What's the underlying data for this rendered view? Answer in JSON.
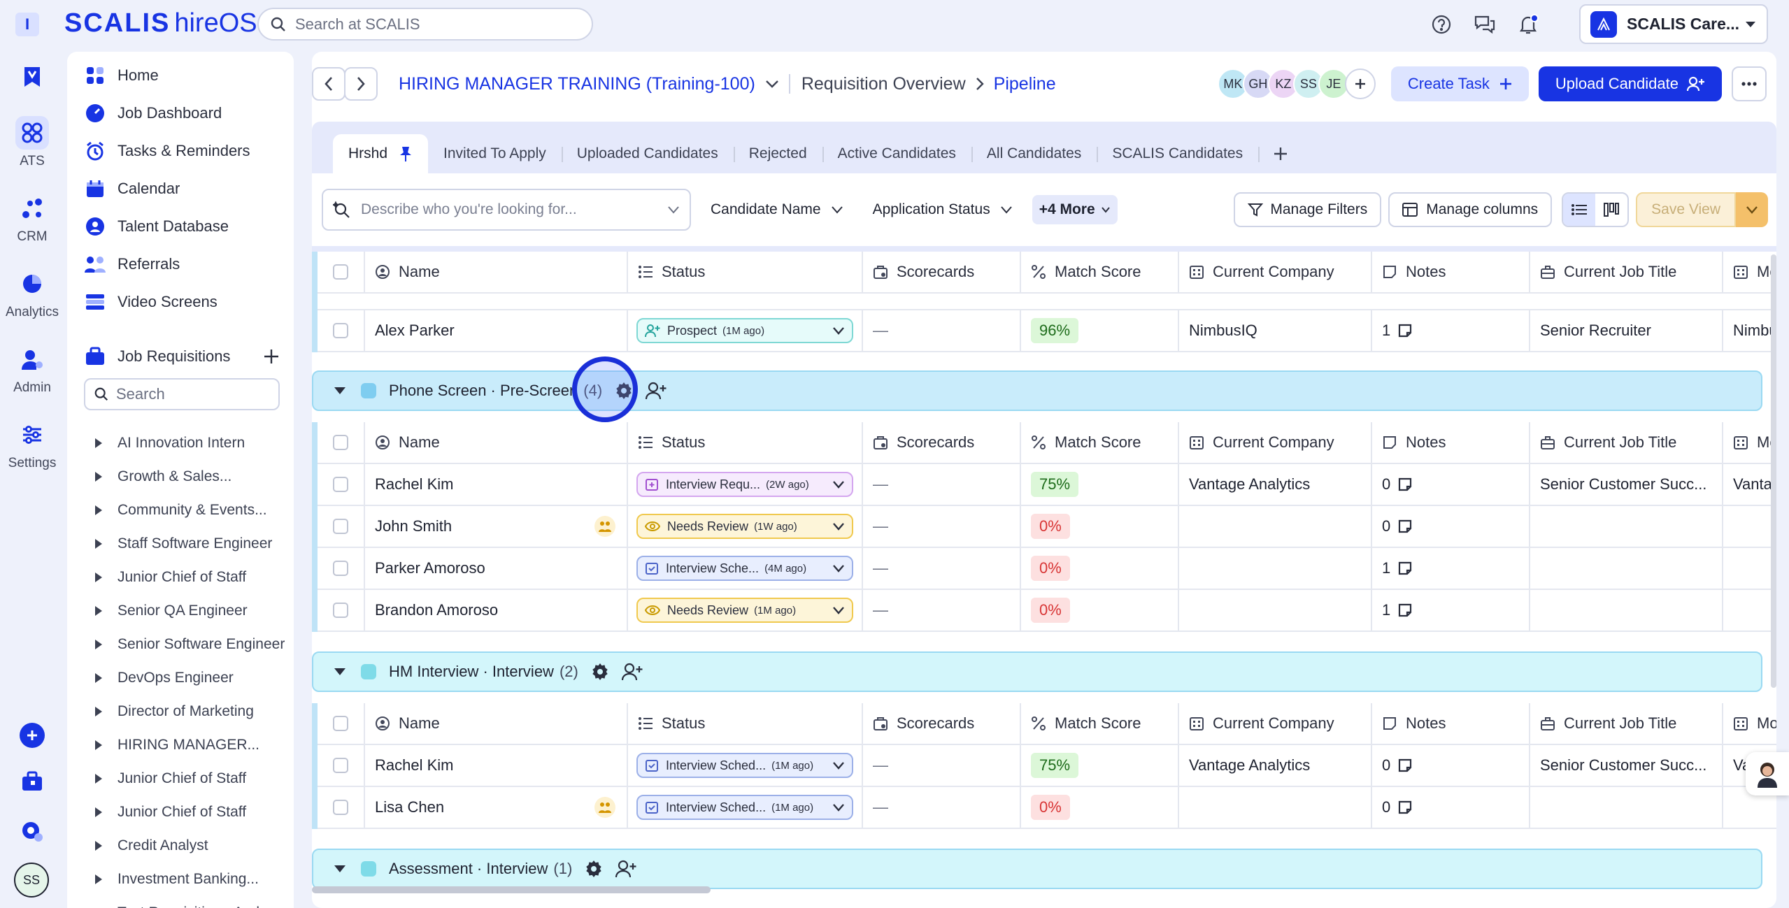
{
  "brand": {
    "name": "SCALIS",
    "product": "hireOS",
    "menu_icon": "I"
  },
  "topbar": {
    "search_placeholder": "Search at SCALIS",
    "org_name": "SCALIS Care..."
  },
  "rail": [
    {
      "label": "ATS",
      "icon": "ats-icon"
    },
    {
      "label": "CRM",
      "icon": "crm-icon"
    },
    {
      "label": "Analytics",
      "icon": "analytics-icon"
    },
    {
      "label": "Admin",
      "icon": "admin-icon"
    },
    {
      "label": "Settings",
      "icon": "settings-icon"
    }
  ],
  "user_initials": "SS",
  "nav": {
    "items": [
      "Home",
      "Job Dashboard",
      "Tasks & Reminders",
      "Calendar",
      "Talent Database",
      "Referrals",
      "Video Screens"
    ],
    "requisitions_label": "Job Requisitions",
    "search_placeholder": "Search",
    "requisitions": [
      "AI Innovation Intern",
      "Growth & Sales...",
      "Community & Events...",
      "Staff Software Engineer",
      "Junior Chief of Staff",
      "Senior QA Engineer",
      "Senior Software Engineer",
      "DevOps Engineer",
      "Director of Marketing",
      "HIRING MANAGER...",
      "Junior Chief of Staff",
      "Junior Chief of Staff",
      "Credit Analyst",
      "Investment Banking...",
      "Test Requisition - Andr..."
    ]
  },
  "header": {
    "title": "HIRING MANAGER TRAINING (Training-100)",
    "breadcrumb_overview": "Requisition Overview",
    "breadcrumb_current": "Pipeline",
    "avatars": [
      {
        "initials": "MK",
        "color": "#bfe7f5"
      },
      {
        "initials": "GH",
        "color": "#d7d9f5"
      },
      {
        "initials": "KZ",
        "color": "#ecd5f5"
      },
      {
        "initials": "SS",
        "color": "#cfeff1"
      },
      {
        "initials": "JE",
        "color": "#cdf2cf"
      }
    ],
    "create_task": "Create Task",
    "upload_candidate": "Upload Candidate"
  },
  "tabs": [
    "Hrshd",
    "Invited To Apply",
    "Uploaded Candidates",
    "Rejected",
    "Active Candidates",
    "All Candidates",
    "SCALIS Candidates"
  ],
  "filters": {
    "ai_placeholder": "Describe who you're looking for...",
    "candidate_name": "Candidate Name",
    "application_status": "Application Status",
    "more": "+4 More",
    "manage_filters": "Manage Filters",
    "manage_columns": "Manage columns",
    "save_view": "Save View"
  },
  "columns": [
    "Name",
    "Status",
    "Scorecards",
    "Match Score",
    "Current Company",
    "Notes",
    "Current Job Title",
    "Mo"
  ],
  "top_row": {
    "name": "Alex Parker",
    "status": "Prospect",
    "ago": "(1M ago)",
    "scorecards": "—",
    "match": "96%",
    "company": "NimbusIQ",
    "notes": "1",
    "title": "Senior Recruiter",
    "extra": "Nimbus"
  },
  "groups": [
    {
      "label": "Phone Screen · Pre-Screen",
      "count": "(4)",
      "color": "#c9ecfb",
      "square": "#7fcdf0",
      "rows": [
        {
          "name": "Rachel Kim",
          "status": "Interview Requ...",
          "ago": "(2W ago)",
          "kind": "req",
          "scorecards": "—",
          "match": "75%",
          "company": "Vantage Analytics",
          "notes": "0",
          "title": "Senior Customer Succ...",
          "extra": "Vantag",
          "badge": false
        },
        {
          "name": "John Smith",
          "status": "Needs Review",
          "ago": "(1W ago)",
          "kind": "review",
          "scorecards": "—",
          "match": "0%",
          "company": "",
          "notes": "0",
          "title": "",
          "extra": "",
          "badge": true
        },
        {
          "name": "Parker Amoroso",
          "status": "Interview Sche...",
          "ago": "(4M ago)",
          "kind": "sched",
          "scorecards": "—",
          "match": "0%",
          "company": "",
          "notes": "1",
          "title": "",
          "extra": "",
          "badge": false
        },
        {
          "name": "Brandon Amoroso",
          "status": "Needs Review",
          "ago": "(1M ago)",
          "kind": "review",
          "scorecards": "—",
          "match": "0%",
          "company": "",
          "notes": "1",
          "title": "",
          "extra": "",
          "badge": false
        }
      ]
    },
    {
      "label": "HM Interview · Interview",
      "count": "(2)",
      "color": "#d3f6fb",
      "square": "#7fdbe8",
      "rows": [
        {
          "name": "Rachel Kim",
          "status": "Interview Sched...",
          "ago": "(1M ago)",
          "kind": "sched",
          "scorecards": "—",
          "match": "75%",
          "company": "Vantage Analytics",
          "notes": "0",
          "title": "Senior Customer Succ...",
          "extra": "Va",
          "badge": false
        },
        {
          "name": "Lisa Chen",
          "status": "Interview Sched...",
          "ago": "(1M ago)",
          "kind": "sched",
          "scorecards": "—",
          "match": "0%",
          "company": "",
          "notes": "0",
          "title": "",
          "extra": "",
          "badge": true
        }
      ]
    },
    {
      "label": "Assessment · Interview",
      "count": "(1)",
      "color": "#d3f6fb",
      "square": "#7fdbe8",
      "rows": []
    }
  ]
}
